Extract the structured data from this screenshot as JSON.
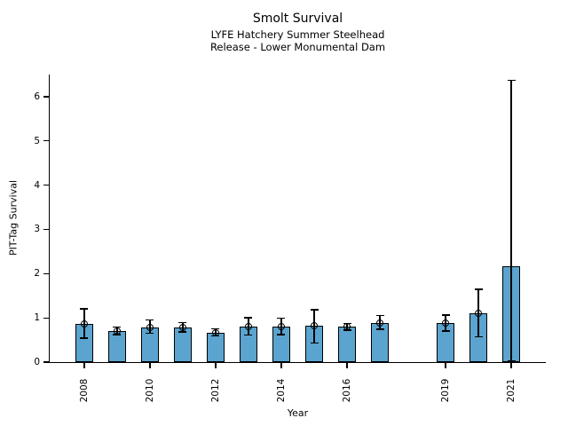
{
  "chart_data": {
    "type": "bar",
    "title": "Smolt Survival",
    "subtitle_lines": [
      "LYFE Hatchery Summer Steelhead",
      "Release - Lower Monumental Dam"
    ],
    "xlabel": "Year",
    "ylabel": "PIT-Tag Survival",
    "ylim": [
      0,
      6.5
    ],
    "yticks": [
      0,
      1,
      2,
      3,
      4,
      5,
      6
    ],
    "xlim": [
      2006.95,
      2022.05
    ],
    "xtick_years": [
      2008,
      2010,
      2012,
      2014,
      2016,
      2019,
      2021
    ],
    "xtick_labels": [
      "2008",
      "2010",
      "2012",
      "2014",
      "2016",
      "2019",
      "2021"
    ],
    "grid": false,
    "legend": "none",
    "bar_color": "#5BA4CF",
    "bar_edge_color": "#000000",
    "bars": [
      {
        "year": 2008,
        "value": 0.86,
        "ci_low": 0.54,
        "ci_high": 1.2,
        "marker": true
      },
      {
        "year": 2009,
        "value": 0.7,
        "ci_low": 0.62,
        "ci_high": 0.79,
        "marker": true
      },
      {
        "year": 2010,
        "value": 0.79,
        "ci_low": 0.65,
        "ci_high": 0.95,
        "marker": true
      },
      {
        "year": 2011,
        "value": 0.78,
        "ci_low": 0.68,
        "ci_high": 0.89,
        "marker": true
      },
      {
        "year": 2012,
        "value": 0.67,
        "ci_low": 0.59,
        "ci_high": 0.75,
        "marker": true
      },
      {
        "year": 2013,
        "value": 0.8,
        "ci_low": 0.61,
        "ci_high": 1.0,
        "marker": true
      },
      {
        "year": 2014,
        "value": 0.8,
        "ci_low": 0.62,
        "ci_high": 0.99,
        "marker": true
      },
      {
        "year": 2015,
        "value": 0.82,
        "ci_low": 0.43,
        "ci_high": 1.18,
        "marker": true
      },
      {
        "year": 2016,
        "value": 0.8,
        "ci_low": 0.72,
        "ci_high": 0.87,
        "marker": true
      },
      {
        "year": 2017,
        "value": 0.88,
        "ci_low": 0.74,
        "ci_high": 1.05,
        "marker": true
      },
      {
        "year": 2019,
        "value": 0.88,
        "ci_low": 0.7,
        "ci_high": 1.06,
        "marker": true
      },
      {
        "year": 2020,
        "value": 1.11,
        "ci_low": 0.57,
        "ci_high": 1.65,
        "marker": true
      },
      {
        "year": 2021,
        "value": 2.17,
        "ci_low": 0.02,
        "ci_high": 6.37,
        "marker": false
      }
    ]
  }
}
